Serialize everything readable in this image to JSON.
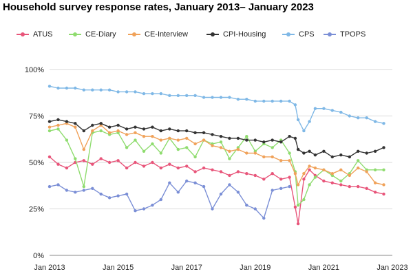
{
  "title": "Household survey response rates, January 2013– January 2023",
  "chart_data": {
    "type": "line",
    "title": "Household survey response rates, January 2013– January 2023",
    "xlabel": "",
    "ylabel": "",
    "x_ticks": [
      "Jan 2013",
      "Jan 2015",
      "Jan 2017",
      "Jan 2019",
      "Jan 2021",
      "Jan 2023"
    ],
    "y_ticks": [
      "0%",
      "25%",
      "50%",
      "75%",
      "100%"
    ],
    "xlim": [
      "2013-01",
      "2023-01"
    ],
    "ylim": [
      0,
      100
    ],
    "grid": "horizontal",
    "legend_position": "top",
    "series": [
      {
        "name": "ATUS",
        "color": "#e8557a",
        "points": [
          [
            "2013-01",
            53
          ],
          [
            "2013-04",
            49
          ],
          [
            "2013-07",
            47
          ],
          [
            "2013-10",
            50
          ],
          [
            "2014-01",
            51
          ],
          [
            "2014-04",
            49
          ],
          [
            "2014-07",
            52
          ],
          [
            "2014-10",
            50
          ],
          [
            "2015-01",
            51
          ],
          [
            "2015-04",
            47
          ],
          [
            "2015-07",
            50
          ],
          [
            "2015-10",
            48
          ],
          [
            "2016-01",
            50
          ],
          [
            "2016-04",
            47
          ],
          [
            "2016-07",
            49
          ],
          [
            "2016-10",
            47
          ],
          [
            "2017-01",
            48
          ],
          [
            "2017-04",
            45
          ],
          [
            "2017-07",
            47
          ],
          [
            "2017-10",
            46
          ],
          [
            "2018-01",
            45
          ],
          [
            "2018-04",
            43
          ],
          [
            "2018-07",
            45
          ],
          [
            "2018-10",
            44
          ],
          [
            "2019-01",
            43
          ],
          [
            "2019-04",
            41
          ],
          [
            "2019-07",
            44
          ],
          [
            "2019-10",
            41
          ],
          [
            "2020-01",
            42
          ],
          [
            "2020-03",
            26
          ],
          [
            "2020-04",
            17
          ],
          [
            "2020-06",
            41
          ],
          [
            "2020-08",
            46
          ],
          [
            "2020-10",
            43
          ],
          [
            "2021-01",
            40
          ],
          [
            "2021-04",
            39
          ],
          [
            "2021-07",
            38
          ],
          [
            "2021-10",
            37
          ],
          [
            "2022-01",
            37
          ],
          [
            "2022-04",
            36
          ],
          [
            "2022-07",
            34
          ],
          [
            "2022-10",
            33
          ]
        ]
      },
      {
        "name": "CE-Diary",
        "color": "#8fdc6f",
        "points": [
          [
            "2013-01",
            67
          ],
          [
            "2013-04",
            68
          ],
          [
            "2013-07",
            62
          ],
          [
            "2013-10",
            52
          ],
          [
            "2014-01",
            37
          ],
          [
            "2014-04",
            66
          ],
          [
            "2014-07",
            67
          ],
          [
            "2014-10",
            65
          ],
          [
            "2015-01",
            66
          ],
          [
            "2015-04",
            58
          ],
          [
            "2015-07",
            62
          ],
          [
            "2015-10",
            56
          ],
          [
            "2016-01",
            60
          ],
          [
            "2016-04",
            55
          ],
          [
            "2016-07",
            63
          ],
          [
            "2016-10",
            57
          ],
          [
            "2017-01",
            58
          ],
          [
            "2017-04",
            53
          ],
          [
            "2017-07",
            62
          ],
          [
            "2017-10",
            60
          ],
          [
            "2018-01",
            61
          ],
          [
            "2018-04",
            52
          ],
          [
            "2018-07",
            58
          ],
          [
            "2018-10",
            64
          ],
          [
            "2019-01",
            56
          ],
          [
            "2019-04",
            60
          ],
          [
            "2019-07",
            58
          ],
          [
            "2019-10",
            62
          ],
          [
            "2020-01",
            55
          ],
          [
            "2020-03",
            45
          ],
          [
            "2020-04",
            27
          ],
          [
            "2020-06",
            30
          ],
          [
            "2020-08",
            38
          ],
          [
            "2020-10",
            42
          ],
          [
            "2021-01",
            46
          ],
          [
            "2021-04",
            43
          ],
          [
            "2021-07",
            40
          ],
          [
            "2021-10",
            44
          ],
          [
            "2022-01",
            51
          ],
          [
            "2022-04",
            46
          ],
          [
            "2022-07",
            46
          ],
          [
            "2022-10",
            46
          ]
        ]
      },
      {
        "name": "CE-Interview",
        "color": "#f0a25a",
        "points": [
          [
            "2013-01",
            69
          ],
          [
            "2013-04",
            70
          ],
          [
            "2013-07",
            71
          ],
          [
            "2013-10",
            69
          ],
          [
            "2014-01",
            57
          ],
          [
            "2014-04",
            67
          ],
          [
            "2014-07",
            70
          ],
          [
            "2014-10",
            66
          ],
          [
            "2015-01",
            67
          ],
          [
            "2015-04",
            65
          ],
          [
            "2015-07",
            66
          ],
          [
            "2015-10",
            64
          ],
          [
            "2016-01",
            64
          ],
          [
            "2016-04",
            62
          ],
          [
            "2016-07",
            63
          ],
          [
            "2016-10",
            62
          ],
          [
            "2017-01",
            63
          ],
          [
            "2017-04",
            60
          ],
          [
            "2017-07",
            62
          ],
          [
            "2017-10",
            59
          ],
          [
            "2018-01",
            58
          ],
          [
            "2018-04",
            56
          ],
          [
            "2018-07",
            57
          ],
          [
            "2018-10",
            55
          ],
          [
            "2019-01",
            55
          ],
          [
            "2019-04",
            53
          ],
          [
            "2019-07",
            53
          ],
          [
            "2019-10",
            51
          ],
          [
            "2020-01",
            51
          ],
          [
            "2020-03",
            44
          ],
          [
            "2020-04",
            38
          ],
          [
            "2020-06",
            44
          ],
          [
            "2020-08",
            48
          ],
          [
            "2020-10",
            47
          ],
          [
            "2021-01",
            46
          ],
          [
            "2021-04",
            44
          ],
          [
            "2021-07",
            46
          ],
          [
            "2021-10",
            43
          ],
          [
            "2022-01",
            47
          ],
          [
            "2022-04",
            45
          ],
          [
            "2022-07",
            39
          ],
          [
            "2022-10",
            38
          ]
        ]
      },
      {
        "name": "CPI-Housing",
        "color": "#333333",
        "points": [
          [
            "2013-01",
            72
          ],
          [
            "2013-04",
            73
          ],
          [
            "2013-07",
            72
          ],
          [
            "2013-10",
            71
          ],
          [
            "2014-01",
            67
          ],
          [
            "2014-04",
            70
          ],
          [
            "2014-07",
            71
          ],
          [
            "2014-10",
            69
          ],
          [
            "2015-01",
            70
          ],
          [
            "2015-04",
            68
          ],
          [
            "2015-07",
            69
          ],
          [
            "2015-10",
            68
          ],
          [
            "2016-01",
            69
          ],
          [
            "2016-04",
            67
          ],
          [
            "2016-07",
            68
          ],
          [
            "2016-10",
            67
          ],
          [
            "2017-01",
            67
          ],
          [
            "2017-04",
            66
          ],
          [
            "2017-07",
            66
          ],
          [
            "2017-10",
            65
          ],
          [
            "2018-01",
            64
          ],
          [
            "2018-04",
            63
          ],
          [
            "2018-07",
            63
          ],
          [
            "2018-10",
            62
          ],
          [
            "2019-01",
            62
          ],
          [
            "2019-04",
            61
          ],
          [
            "2019-07",
            62
          ],
          [
            "2019-10",
            61
          ],
          [
            "2020-01",
            64
          ],
          [
            "2020-03",
            63
          ],
          [
            "2020-04",
            57
          ],
          [
            "2020-06",
            55
          ],
          [
            "2020-08",
            56
          ],
          [
            "2020-10",
            54
          ],
          [
            "2021-01",
            56
          ],
          [
            "2021-04",
            53
          ],
          [
            "2021-07",
            54
          ],
          [
            "2021-10",
            53
          ],
          [
            "2022-01",
            56
          ],
          [
            "2022-04",
            55
          ],
          [
            "2022-07",
            56
          ],
          [
            "2022-10",
            58
          ]
        ]
      },
      {
        "name": "CPS",
        "color": "#7fb8e6",
        "points": [
          [
            "2013-01",
            91
          ],
          [
            "2013-04",
            90
          ],
          [
            "2013-07",
            90
          ],
          [
            "2013-10",
            90
          ],
          [
            "2014-01",
            89
          ],
          [
            "2014-04",
            89
          ],
          [
            "2014-07",
            89
          ],
          [
            "2014-10",
            89
          ],
          [
            "2015-01",
            88
          ],
          [
            "2015-04",
            88
          ],
          [
            "2015-07",
            88
          ],
          [
            "2015-10",
            87
          ],
          [
            "2016-01",
            87
          ],
          [
            "2016-04",
            87
          ],
          [
            "2016-07",
            86
          ],
          [
            "2016-10",
            86
          ],
          [
            "2017-01",
            86
          ],
          [
            "2017-04",
            86
          ],
          [
            "2017-07",
            85
          ],
          [
            "2017-10",
            85
          ],
          [
            "2018-01",
            85
          ],
          [
            "2018-04",
            85
          ],
          [
            "2018-07",
            84
          ],
          [
            "2018-10",
            84
          ],
          [
            "2019-01",
            83
          ],
          [
            "2019-04",
            83
          ],
          [
            "2019-07",
            83
          ],
          [
            "2019-10",
            83
          ],
          [
            "2020-01",
            83
          ],
          [
            "2020-03",
            81
          ],
          [
            "2020-04",
            73
          ],
          [
            "2020-06",
            67
          ],
          [
            "2020-08",
            72
          ],
          [
            "2020-10",
            79
          ],
          [
            "2021-01",
            79
          ],
          [
            "2021-04",
            78
          ],
          [
            "2021-07",
            77
          ],
          [
            "2021-10",
            75
          ],
          [
            "2022-01",
            74
          ],
          [
            "2022-04",
            74
          ],
          [
            "2022-07",
            72
          ],
          [
            "2022-10",
            71
          ]
        ]
      },
      {
        "name": "TPOPS",
        "color": "#7b8fd6",
        "points": [
          [
            "2013-01",
            37
          ],
          [
            "2013-04",
            38
          ],
          [
            "2013-07",
            35
          ],
          [
            "2013-10",
            34
          ],
          [
            "2014-01",
            35
          ],
          [
            "2014-04",
            36
          ],
          [
            "2014-07",
            33
          ],
          [
            "2014-10",
            31
          ],
          [
            "2015-01",
            32
          ],
          [
            "2015-04",
            33
          ],
          [
            "2015-07",
            24
          ],
          [
            "2015-10",
            25
          ],
          [
            "2016-01",
            27
          ],
          [
            "2016-04",
            30
          ],
          [
            "2016-07",
            39
          ],
          [
            "2016-10",
            34
          ],
          [
            "2017-01",
            40
          ],
          [
            "2017-04",
            39
          ],
          [
            "2017-07",
            37
          ],
          [
            "2017-10",
            25
          ],
          [
            "2018-01",
            33
          ],
          [
            "2018-04",
            38
          ],
          [
            "2018-07",
            34
          ],
          [
            "2018-10",
            27
          ],
          [
            "2019-01",
            25
          ],
          [
            "2019-04",
            20
          ],
          [
            "2019-07",
            35
          ],
          [
            "2019-10",
            36
          ],
          [
            "2020-01",
            37
          ]
        ]
      }
    ]
  }
}
